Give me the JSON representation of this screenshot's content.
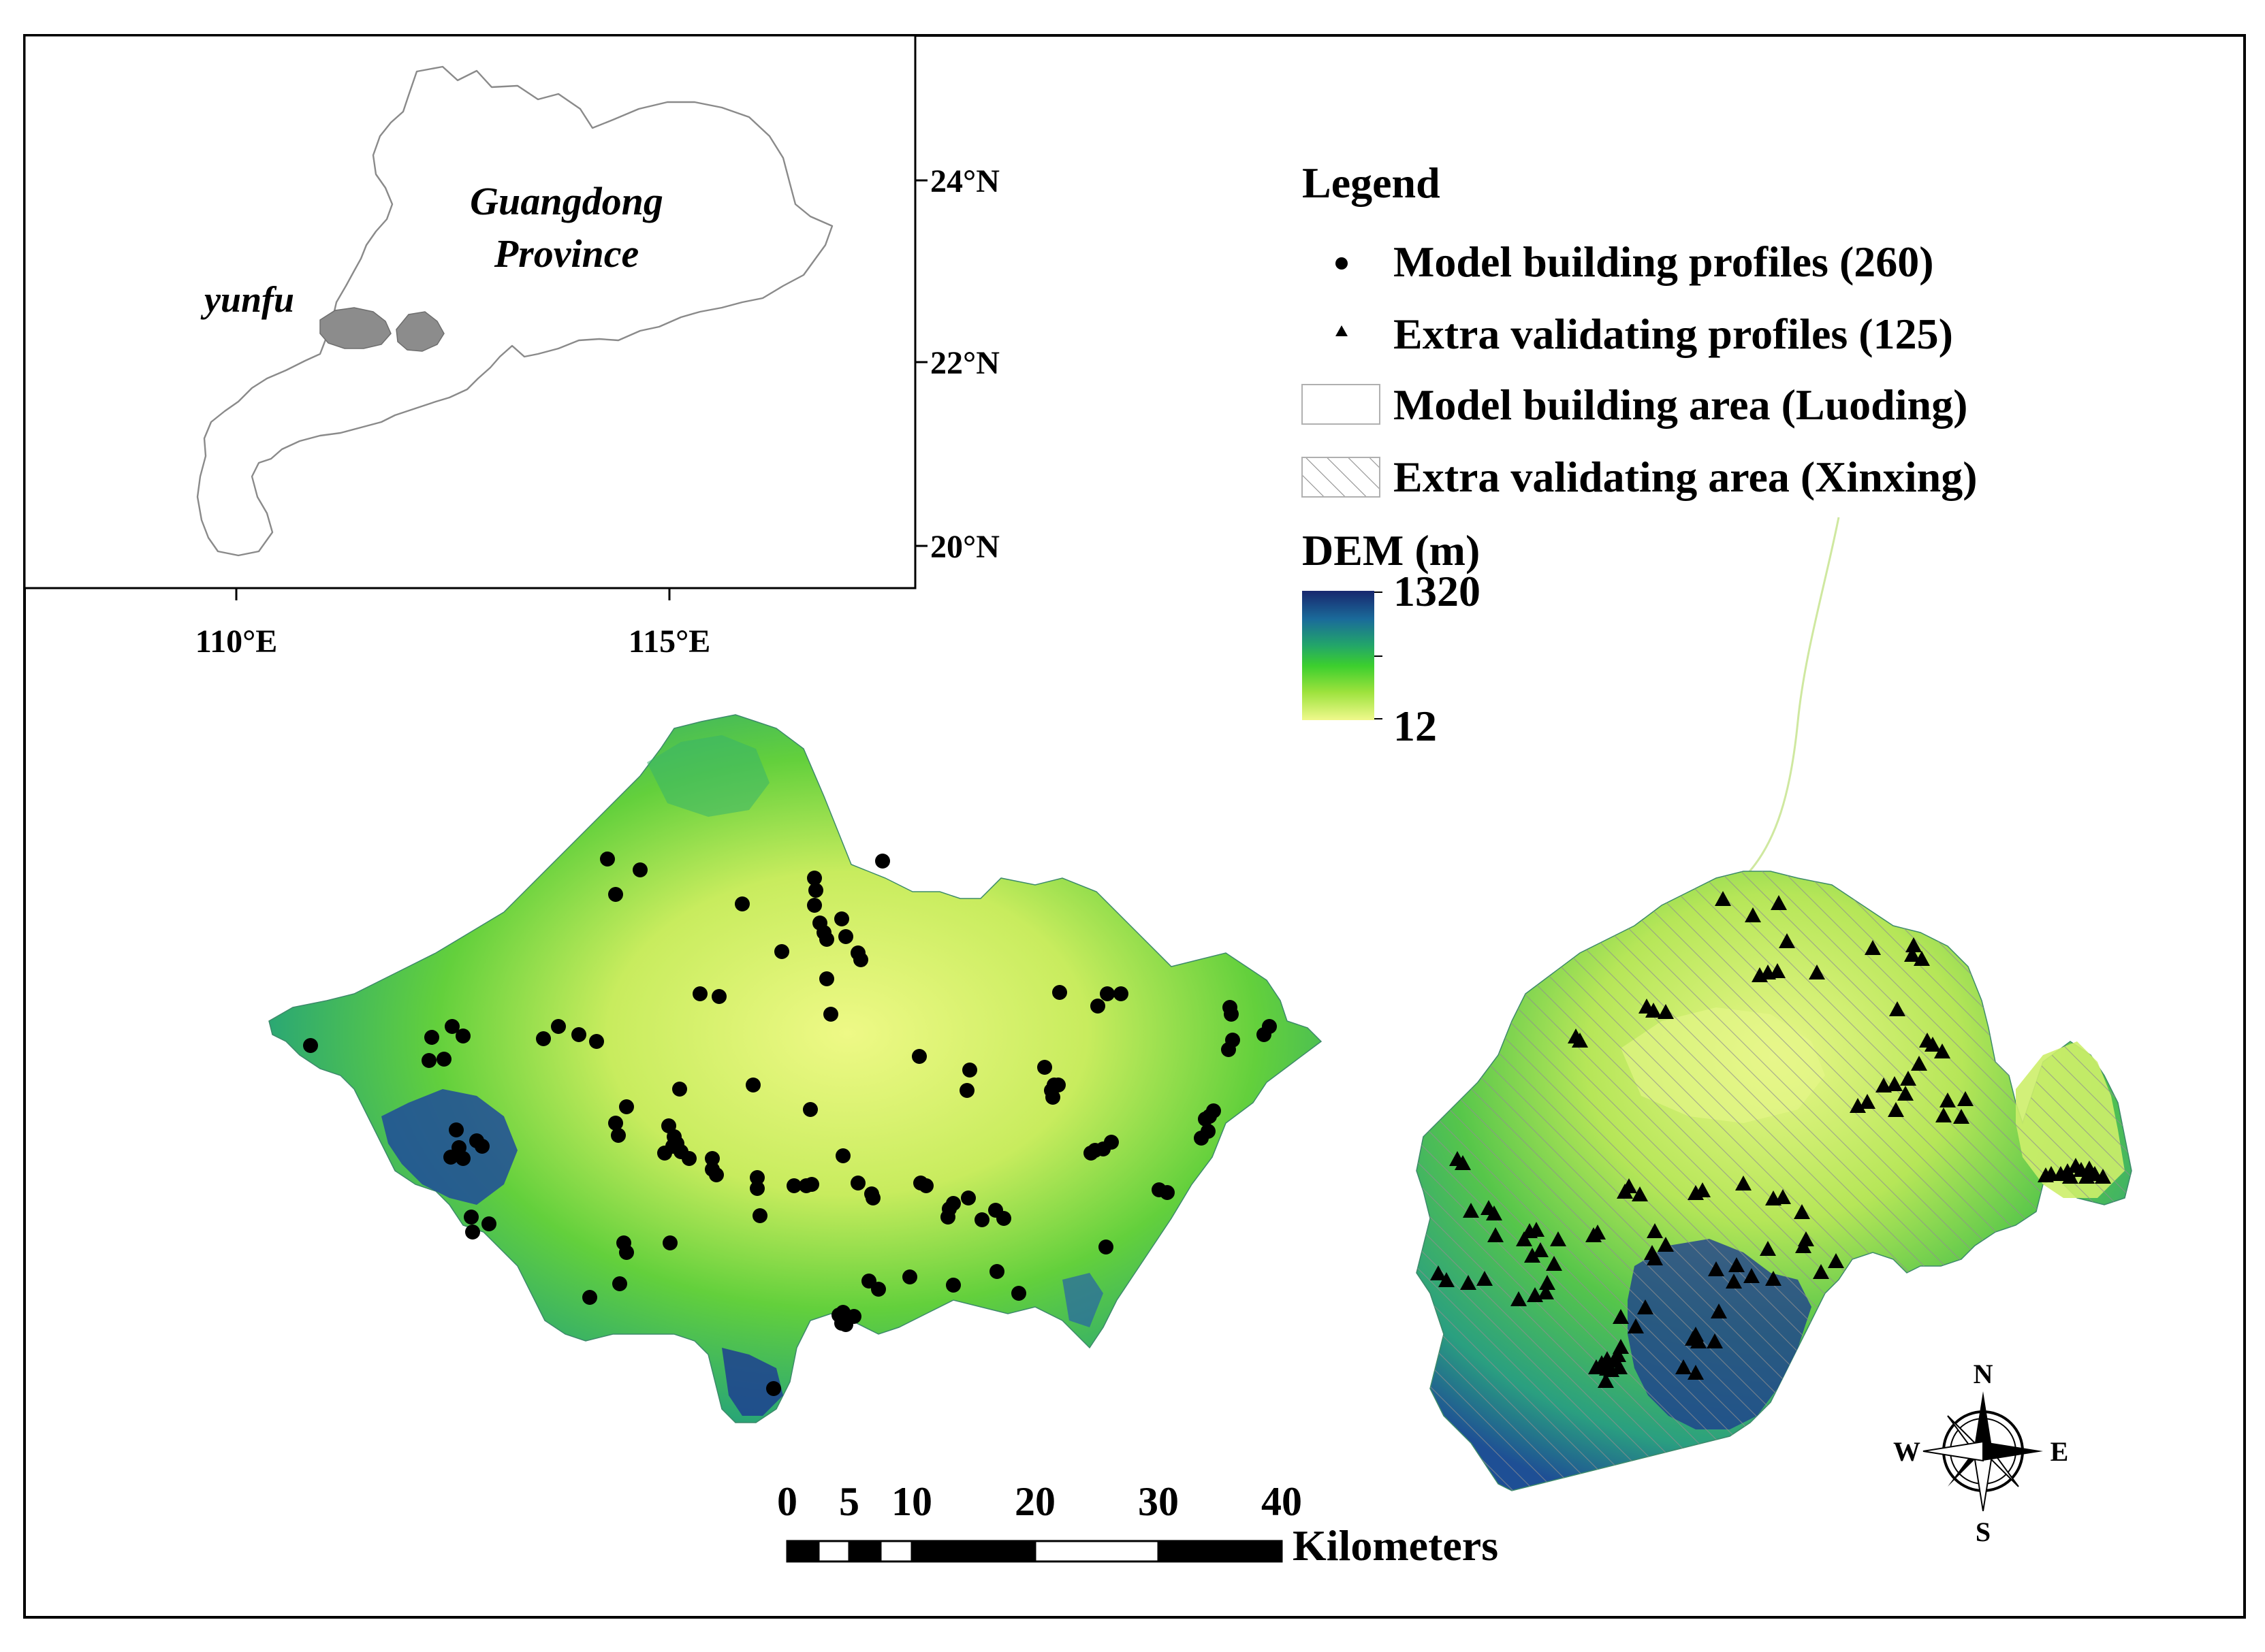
{
  "inset": {
    "province_label_line1": "Guangdong",
    "province_label_line2": "Province",
    "city_label": "yunfu",
    "lat_labels": [
      "24°N",
      "22°N",
      "20°N"
    ],
    "lon_labels": [
      "110°E",
      "115°E"
    ]
  },
  "legend": {
    "title": "Legend",
    "items": [
      {
        "symbol": "dot",
        "label": "Model building profiles (260)"
      },
      {
        "symbol": "triangle",
        "label": "Extra validating profiles (125)"
      },
      {
        "symbol": "empty-box",
        "label": "Model building area (Luoding)"
      },
      {
        "symbol": "hatched-box",
        "label": "Extra validating area (Xinxing)"
      }
    ],
    "dem_title": "DEM (m)",
    "dem_max": "1320",
    "dem_min": "12",
    "dem_colors": [
      "#18276e",
      "#1a6b9a",
      "#22a56a",
      "#3ccf2e",
      "#9be23c",
      "#f0f98c"
    ]
  },
  "scale_bar": {
    "ticks": [
      "0",
      "5",
      "10",
      "20",
      "30",
      "40"
    ],
    "unit": "Kilometers"
  },
  "north_arrow": {
    "n": "N",
    "s": "S",
    "e": "E",
    "w": "W"
  },
  "colors": {
    "point": "#000000",
    "hatch": "#9a9a9a",
    "inset_outline": "#8a8a8a",
    "yunfu_fill": "#8c8c8c"
  }
}
